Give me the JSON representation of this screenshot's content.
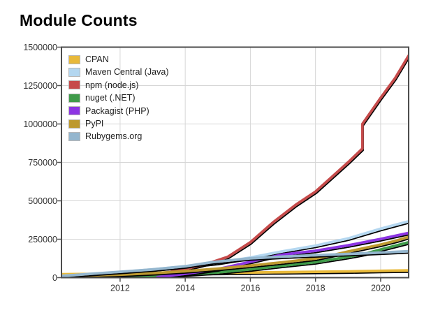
{
  "title": "Module Counts",
  "chart_data": {
    "type": "line",
    "title": "Module Counts",
    "grid": true,
    "legend_position": "top-left",
    "plot_border_color": "#4d4d4d",
    "grid_color": "#d6d6d6",
    "shadow_color": "#000000",
    "x_axis": {
      "range": [
        2010.2,
        2020.86
      ],
      "ticks": [
        {
          "value": 2012,
          "label": "2012"
        },
        {
          "value": 2014,
          "label": "2014"
        },
        {
          "value": 2016,
          "label": "2016"
        },
        {
          "value": 2018,
          "label": "2018"
        },
        {
          "value": 2020,
          "label": "2020"
        }
      ]
    },
    "y_axis": {
      "range": [
        0,
        1500000
      ],
      "ticks": [
        {
          "value": 0,
          "label": "0"
        },
        {
          "value": 250000,
          "label": "250000"
        },
        {
          "value": 500000,
          "label": "500000"
        },
        {
          "value": 750000,
          "label": "750000"
        },
        {
          "value": 1000000,
          "label": "1000000"
        },
        {
          "value": 1250000,
          "label": "1250000"
        },
        {
          "value": 1500000,
          "label": "1500000"
        }
      ]
    },
    "series": [
      {
        "name": "CPAN",
        "color": "#e8b93a",
        "x": [
          2010.2,
          2011,
          2012,
          2013,
          2014,
          2015,
          2016,
          2017,
          2018,
          2019,
          2020,
          2020.86
        ],
        "values": [
          22000,
          23500,
          25000,
          27000,
          29500,
          31500,
          33500,
          35500,
          38000,
          40500,
          44000,
          47000
        ]
      },
      {
        "name": "Maven Central (Java)",
        "color": "#b4d7f0",
        "x": [
          2010.2,
          2011,
          2012,
          2013,
          2014,
          2015,
          2016,
          2017,
          2018,
          2019,
          2020,
          2020.86
        ],
        "values": [
          12000,
          22000,
          36000,
          54000,
          73000,
          97000,
          131000,
          172000,
          208000,
          255000,
          318000,
          367000
        ]
      },
      {
        "name": "npm (node.js)",
        "color": "#c64b4b",
        "x": [
          2010.3,
          2011,
          2011.5,
          2012,
          2012.5,
          2013,
          2013.5,
          2014,
          2014.5,
          2014.8,
          2015.3,
          2016,
          2016.7,
          2017.4,
          2018,
          2018.5,
          2019.05,
          2019.44,
          2019.44,
          2020,
          2020.45,
          2020.86
        ],
        "values": [
          500,
          1500,
          3500,
          7000,
          13000,
          22000,
          36000,
          57000,
          82000,
          100000,
          135000,
          230000,
          360000,
          475000,
          560000,
          655000,
          760000,
          840000,
          1000000,
          1170000,
          1300000,
          1445000
        ]
      },
      {
        "name": "nuget (.NET)",
        "color": "#3f9b4a",
        "x": [
          2011.4,
          2012,
          2013,
          2014,
          2015,
          2016,
          2017,
          2018,
          2019,
          2019.5,
          2020,
          2020.86
        ],
        "values": [
          1000,
          4500,
          12000,
          21000,
          34000,
          54000,
          78000,
          101000,
          135000,
          155000,
          183000,
          230000
        ]
      },
      {
        "name": "Packagist (PHP)",
        "color": "#8c34e3",
        "x": [
          2013.15,
          2014,
          2015,
          2016,
          2016.5,
          2017,
          2018,
          2019,
          2020,
          2020.86
        ],
        "values": [
          3000,
          25000,
          55000,
          103000,
          128000,
          150000,
          175000,
          210000,
          252000,
          291000
        ]
      },
      {
        "name": "PyPI",
        "color": "#bd992f",
        "x": [
          2010.2,
          2011,
          2012,
          2013,
          2014,
          2015,
          2016,
          2017,
          2018,
          2018.6,
          2019,
          2020,
          2020.5,
          2020.86
        ],
        "values": [
          10000,
          14000,
          19500,
          29000,
          42000,
          58000,
          78000,
          100000,
          124000,
          150000,
          170000,
          215000,
          242000,
          265000
        ]
      },
      {
        "name": "Rubygems.org",
        "color": "#94b6ce",
        "x": [
          2010.2,
          2011,
          2012,
          2013,
          2014,
          2014.8,
          2016,
          2017,
          2018,
          2019,
          2020,
          2020.86
        ],
        "values": [
          10000,
          23000,
          38000,
          53000,
          74000,
          100000,
          126000,
          137000,
          146000,
          154000,
          163000,
          172000
        ]
      }
    ]
  }
}
